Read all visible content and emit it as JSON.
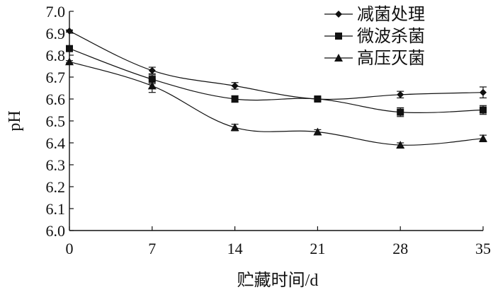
{
  "chart_data": {
    "type": "line",
    "title": "",
    "xlabel": "贮藏时间/d",
    "ylabel": "pH",
    "x": [
      0,
      7,
      14,
      21,
      28,
      35
    ],
    "xlim": [
      0,
      35
    ],
    "ylim": [
      6.0,
      7.0
    ],
    "x_ticks": [
      "0",
      "7",
      "14",
      "21",
      "28",
      "35"
    ],
    "y_ticks": [
      "6.0",
      "6.1",
      "6.2",
      "6.3",
      "6.4",
      "6.5",
      "6.6",
      "6.7",
      "6.8",
      "6.9",
      "7.0"
    ],
    "grid": false,
    "legend_position": "top-right",
    "series": [
      {
        "name": "减菌处理",
        "marker": "diamond",
        "color": "#111111",
        "values": [
          6.91,
          6.73,
          6.66,
          6.6,
          6.62,
          6.63
        ],
        "errors": [
          0.005,
          0.015,
          0.015,
          0.008,
          0.015,
          0.025
        ]
      },
      {
        "name": "微波杀菌",
        "marker": "square",
        "color": "#111111",
        "values": [
          6.83,
          6.69,
          6.6,
          6.6,
          6.54,
          6.55
        ],
        "errors": [
          0.005,
          0.02,
          0.015,
          0.008,
          0.02,
          0.02
        ]
      },
      {
        "name": "高压灭菌",
        "marker": "triangle",
        "color": "#111111",
        "values": [
          6.77,
          6.66,
          6.47,
          6.45,
          6.39,
          6.42
        ],
        "errors": [
          0.005,
          0.03,
          0.015,
          0.01,
          0.01,
          0.015
        ]
      }
    ]
  }
}
